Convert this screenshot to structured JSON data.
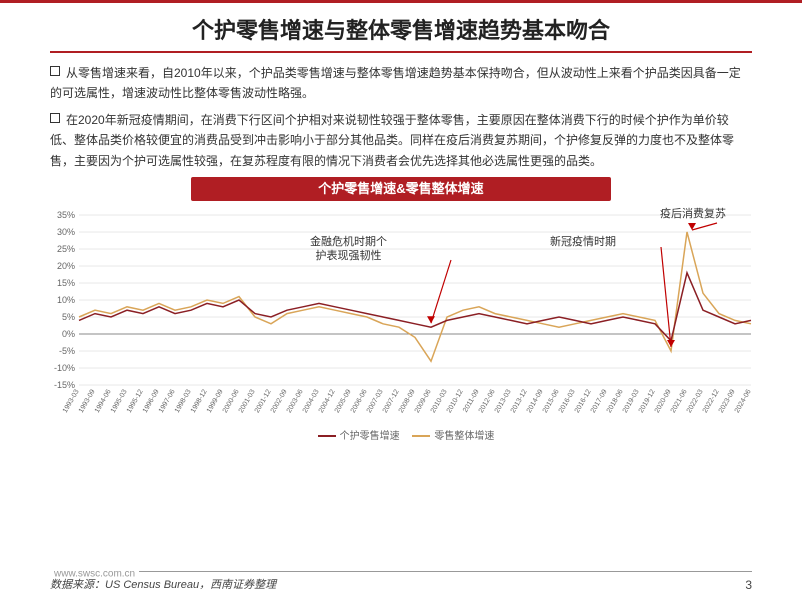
{
  "title": "个护零售增速与整体零售增速趋势基本吻合",
  "para1": "从零售增速来看，自2010年以来，个护品类零售增速与整体零售增速趋势基本保持吻合，但从波动性上来看个护品类因具备一定的可选属性，增速波动性比整体零售波动性略强。",
  "para2": "在2020年新冠疫情期间，在消费下行区间个护相对来说韧性较强于整体零售，主要原因在整体消费下行的时候个护作为单价较低、整体品类价格较便宜的消费品受到冲击影响小于部分其他品类。同样在疫后消费复苏期间，个护修复反弹的力度也不及整体零售，主要因为个护可选属性较强，在复苏程度有限的情况下消费者会优先选择其他必选属性更强的品类。",
  "chart_title": "个护零售增速&零售整体增速",
  "annotations": {
    "a1": "金融危机时期个\n护表现强韧性",
    "a2": "新冠疫情时期",
    "a3": "疫后消费复苏"
  },
  "legend": {
    "s1": "个护零售增速",
    "s2": "零售整体增速"
  },
  "source": "数据来源：US Census Bureau，西南证券整理",
  "url": "www.swsc.com.cn",
  "page": "3",
  "chart": {
    "ylim": [
      -15,
      35
    ],
    "ytick_step": 5,
    "x_labels": [
      "1993-03",
      "1993-09",
      "1994-06",
      "1995-03",
      "1995-12",
      "1996-09",
      "1997-06",
      "1998-03",
      "1998-12",
      "1999-09",
      "2000-06",
      "2001-03",
      "2001-12",
      "2002-09",
      "2003-06",
      "2004-03",
      "2004-12",
      "2005-09",
      "2006-06",
      "2007-03",
      "2007-12",
      "2008-09",
      "2009-06",
      "2010-03",
      "2010-12",
      "2011-09",
      "2012-06",
      "2013-03",
      "2013-12",
      "2014-09",
      "2015-06",
      "2016-03",
      "2016-12",
      "2017-09",
      "2018-06",
      "2019-03",
      "2019-12",
      "2020-09",
      "2021-06",
      "2022-03",
      "2022-12",
      "2023-09",
      "2024-06"
    ],
    "series1_color": "#8b1f24",
    "series2_color": "#d9a558",
    "grid_color": "#d0d0d0",
    "axis_color": "#888",
    "annot_arrow_color": "#c00000",
    "s1": [
      4,
      6,
      5,
      7,
      6,
      8,
      6,
      7,
      9,
      8,
      10,
      6,
      5,
      7,
      8,
      9,
      8,
      7,
      6,
      5,
      4,
      3,
      2,
      4,
      5,
      6,
      5,
      4,
      3,
      4,
      5,
      4,
      3,
      4,
      5,
      4,
      3,
      -2,
      18,
      7,
      5,
      3,
      4
    ],
    "s2": [
      5,
      7,
      6,
      8,
      7,
      9,
      7,
      8,
      10,
      9,
      11,
      5,
      3,
      6,
      7,
      8,
      7,
      6,
      5,
      3,
      2,
      -1,
      -8,
      5,
      7,
      8,
      6,
      5,
      4,
      3,
      2,
      3,
      4,
      5,
      6,
      5,
      4,
      -5,
      30,
      12,
      6,
      4,
      3
    ]
  }
}
